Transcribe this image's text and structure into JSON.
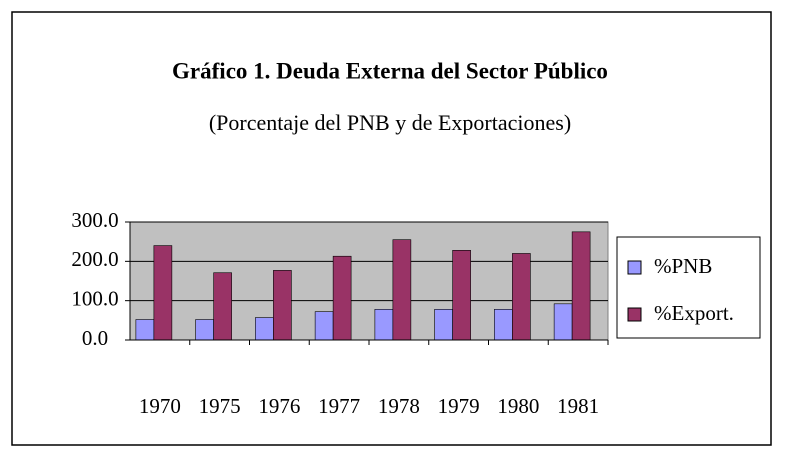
{
  "chart_data": {
    "type": "bar",
    "title": "Gráfico 1. Deuda Externa del Sector Público",
    "subtitle": "(Porcentaje del PNB y de Exportaciones)",
    "categories": [
      "1970",
      "1975",
      "1976",
      "1977",
      "1978",
      "1979",
      "1980",
      "1981"
    ],
    "series": [
      {
        "name": "%PNB",
        "color": "#9999ff",
        "values": [
          52,
          52,
          57,
          72,
          78,
          78,
          78,
          92
        ]
      },
      {
        "name": "%Export.",
        "color": "#993366",
        "values": [
          240,
          171,
          177,
          213,
          255,
          228,
          220,
          275
        ]
      }
    ],
    "ylim": [
      0,
      300
    ],
    "yticks": [
      {
        "value": 0,
        "label": "0.0"
      },
      {
        "value": 100,
        "label": "100.0"
      },
      {
        "value": 200,
        "label": "200.0"
      },
      {
        "value": 300,
        "label": "300.0"
      }
    ],
    "grid": true,
    "legend": "right"
  }
}
